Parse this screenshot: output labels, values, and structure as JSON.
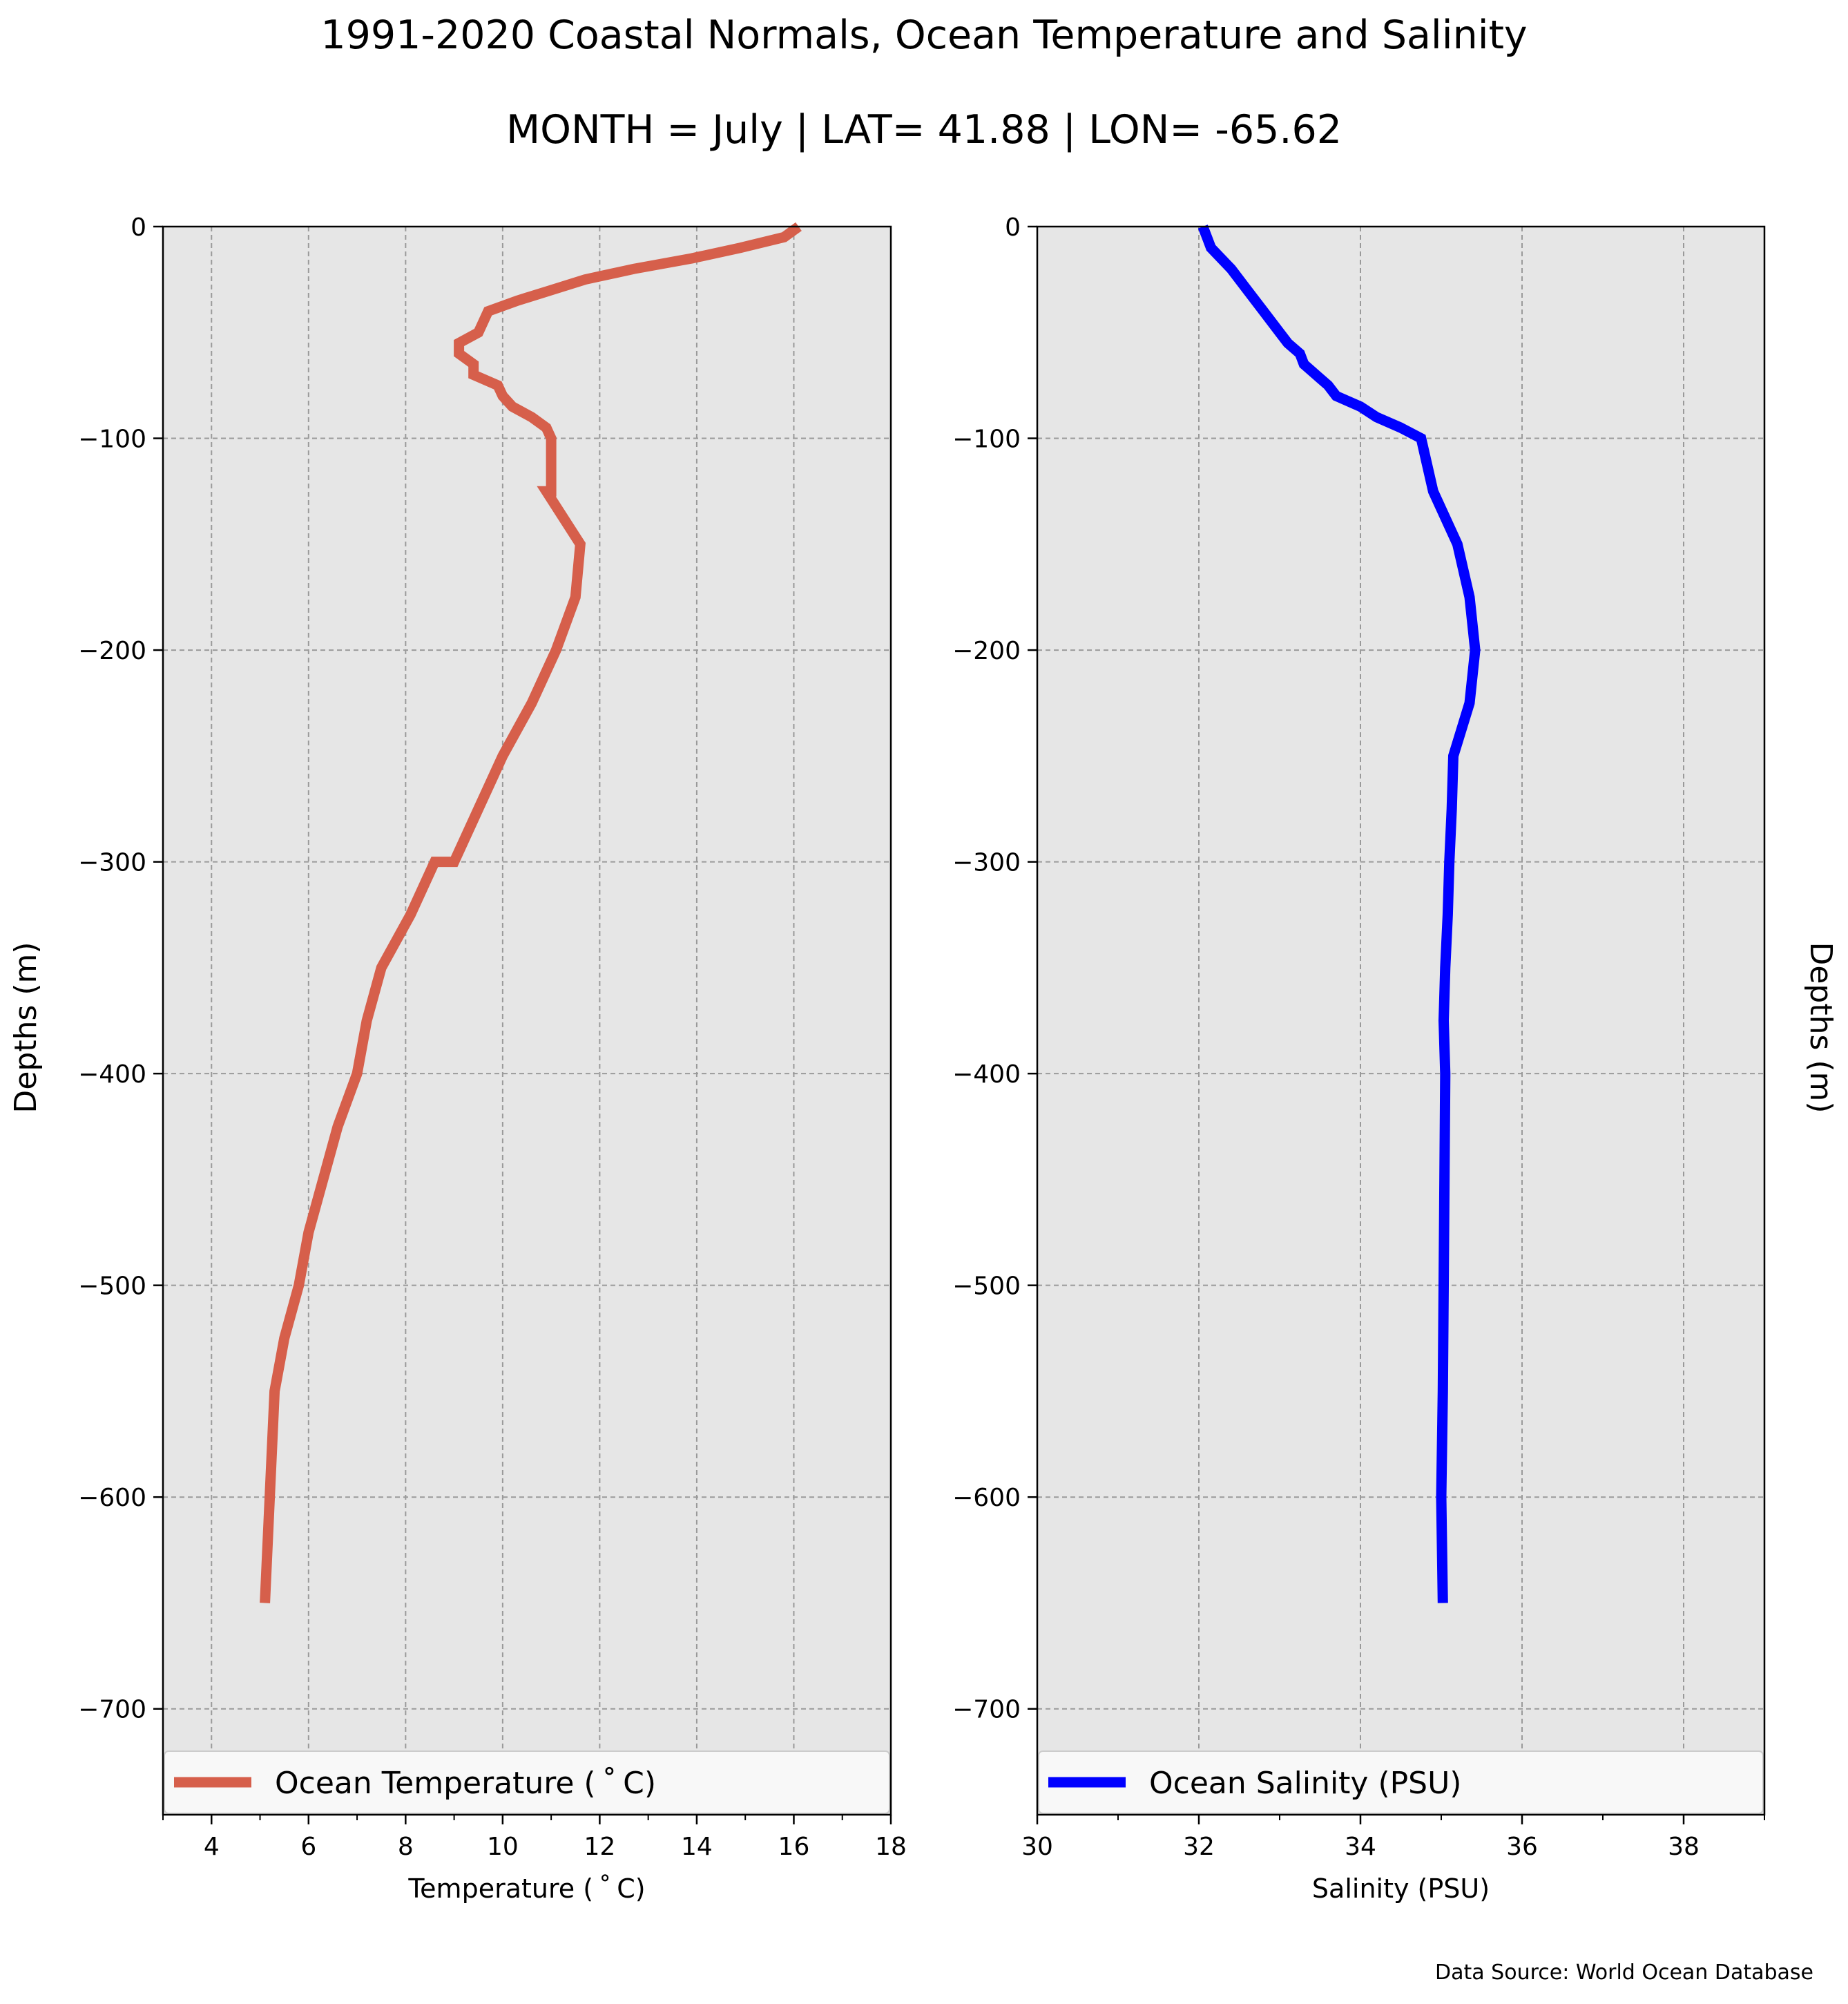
{
  "title": "1991-2020 Coastal Normals, Ocean Temperature and Salinity",
  "subtitle": "MONTH = July | LAT= 41.88 | LON= -65.62",
  "footer": "Data Source: World Ocean Database",
  "chart_data": [
    {
      "type": "line",
      "ylabel": "Depths (m)",
      "xlabel": "Temperature ($^\\circ$C)",
      "xlabel_display": "Temperature ( ˚ C)",
      "xlim": [
        3,
        18
      ],
      "ylim": [
        -750,
        0
      ],
      "xticks": [
        4,
        6,
        8,
        10,
        12,
        14,
        16,
        18
      ],
      "yticks": [
        0,
        -100,
        -200,
        -300,
        -400,
        -500,
        -600,
        -700
      ],
      "ytick_labels": [
        "0",
        "−100",
        "−200",
        "−300",
        "−400",
        "−500",
        "−600",
        "−700"
      ],
      "grid": true,
      "legend_position": "bottom",
      "series": [
        {
          "name": "Ocean Temperature ( ˚ C)",
          "color": "#d65f4b",
          "x": [
            16.1,
            15.8,
            14.9,
            13.9,
            12.7,
            11.7,
            11.0,
            10.3,
            9.7,
            9.6,
            9.5,
            9.1,
            9.1,
            9.4,
            9.4,
            9.9,
            10.0,
            10.2,
            10.6,
            10.9,
            11.0,
            11.0,
            10.9,
            11.6,
            11.5,
            11.1,
            10.6,
            10.0,
            9.5,
            9.0,
            8.6,
            8.1,
            7.5,
            7.2,
            7.0,
            6.6,
            6.3,
            6.0,
            5.8,
            5.5,
            5.3,
            5.1
          ],
          "y": [
            0,
            -5,
            -10,
            -15,
            -20,
            -25,
            -30,
            -35,
            -40,
            -45,
            -50,
            -55,
            -60,
            -65,
            -70,
            -75,
            -80,
            -85,
            -90,
            -95,
            -100,
            -125,
            -125,
            -150,
            -175,
            -200,
            -225,
            -250,
            -275,
            -300,
            -300,
            -325,
            -350,
            -375,
            -400,
            -425,
            -450,
            -475,
            -500,
            -525,
            -550,
            -650
          ]
        }
      ]
    },
    {
      "type": "line",
      "ylabel": "Depths (m)",
      "xlabel": "Salinity (PSU)",
      "xlim": [
        30,
        39
      ],
      "ylim": [
        -750,
        0
      ],
      "xticks": [
        30,
        32,
        34,
        36,
        38
      ],
      "yticks": [
        0,
        -100,
        -200,
        -300,
        -400,
        -500,
        -600,
        -700
      ],
      "ytick_labels": [
        "0",
        "−100",
        "−200",
        "−300",
        "−400",
        "−500",
        "−600",
        "−700"
      ],
      "grid": true,
      "legend_position": "bottom",
      "series": [
        {
          "name": "Ocean Salinity (PSU)",
          "color": "#0000ff",
          "x": [
            32.05,
            32.1,
            32.15,
            32.4,
            32.6,
            32.8,
            33.0,
            33.1,
            33.25,
            33.3,
            33.45,
            33.6,
            33.7,
            34.0,
            34.2,
            34.5,
            34.75,
            34.9,
            35.2,
            35.35,
            35.42,
            35.35,
            35.15,
            35.13,
            35.1,
            35.08,
            35.05,
            35.03,
            35.05,
            35.03,
            35.02,
            35.0,
            35.02
          ],
          "y": [
            0,
            -5,
            -10,
            -20,
            -30,
            -40,
            -50,
            -55,
            -60,
            -65,
            -70,
            -75,
            -80,
            -85,
            -90,
            -95,
            -100,
            -125,
            -150,
            -175,
            -200,
            -225,
            -250,
            -275,
            -300,
            -325,
            -350,
            -375,
            -400,
            -500,
            -550,
            -600,
            -650
          ]
        }
      ]
    }
  ]
}
